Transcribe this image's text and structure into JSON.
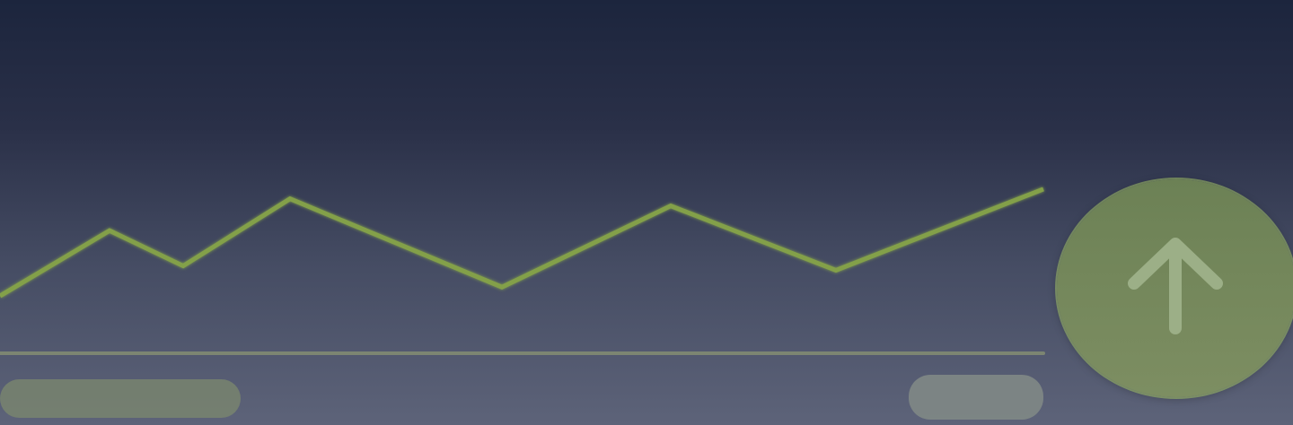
{
  "colors": {
    "accent_line": "#83a04a",
    "baseline": "#7c8572",
    "fab_fill": "#718657",
    "fab_arrow": "#9caf87",
    "pill_left": "#78836f",
    "pill_right": "#7f8886"
  },
  "icons": {
    "fab": "arrow-up-icon"
  },
  "chart_data": {
    "type": "line",
    "x": [
      0,
      1,
      2,
      3,
      4,
      5,
      6,
      7
    ],
    "series": [
      {
        "values": [
          3,
          77,
          37,
          113,
          13,
          105,
          32,
          124
        ]
      }
    ],
    "ylim": [
      0,
      130
    ],
    "grid": false,
    "legend": "none"
  }
}
